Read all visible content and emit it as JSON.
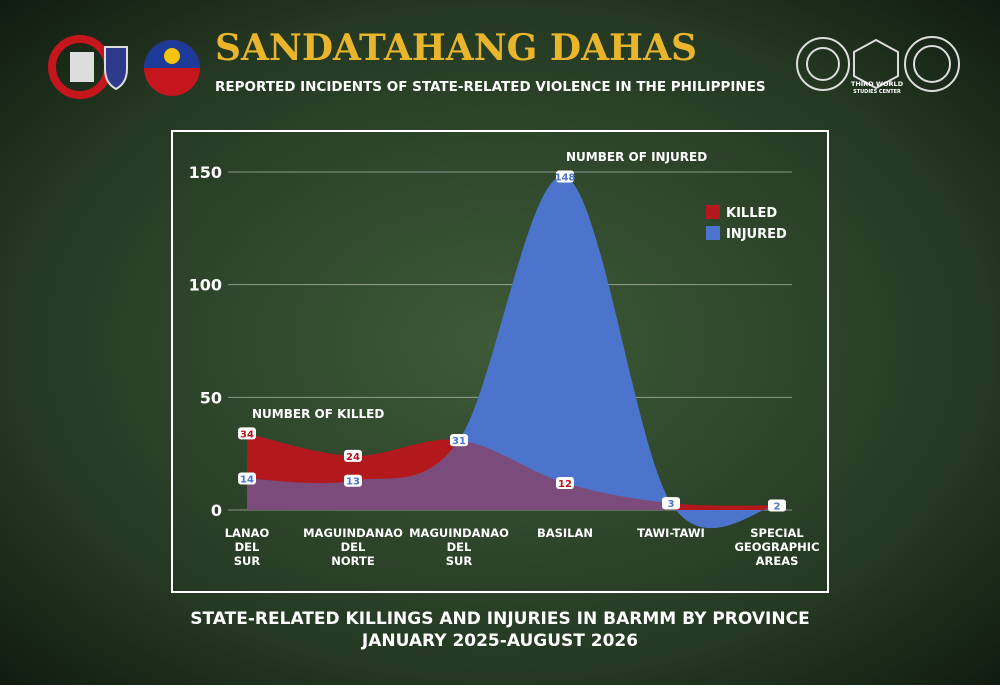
{
  "header": {
    "title": "SANDATAHANG DAHAS",
    "subtitle": "REPORTED INCIDENTS OF STATE-RELATED VIOLENCE IN THE PHILIPPINES",
    "logo_text": [
      "THIRD WORLD",
      "STUDIES CENTER"
    ]
  },
  "chart_data": {
    "type": "area",
    "categories": [
      "LANAO DEL SUR",
      "MAGUINDANAO DEL NORTE",
      "MAGUINDANAO DEL SUR",
      "BASILAN",
      "TAWI-TAWI",
      "SPECIAL GEOGRAPHIC AREAS"
    ],
    "series": [
      {
        "name": "KILLED",
        "color": "#b3191c",
        "values": [
          34,
          24,
          31,
          12,
          3,
          2
        ]
      },
      {
        "name": "INJURED",
        "color": "#4c74cc",
        "values": [
          14,
          13,
          31,
          148,
          3,
          2
        ]
      }
    ],
    "ylim": [
      0,
      150
    ],
    "yticks": [
      0,
      50,
      100,
      150
    ],
    "grid": true,
    "legend": "upper right",
    "annotations": [
      "NUMBER OF KILLED",
      "NUMBER OF INJURED"
    ],
    "caption": [
      "STATE-RELATED KILLINGS AND INJURIES IN BARMM BY PROVINCE",
      "JANUARY 2025-AUGUST 2026"
    ]
  }
}
